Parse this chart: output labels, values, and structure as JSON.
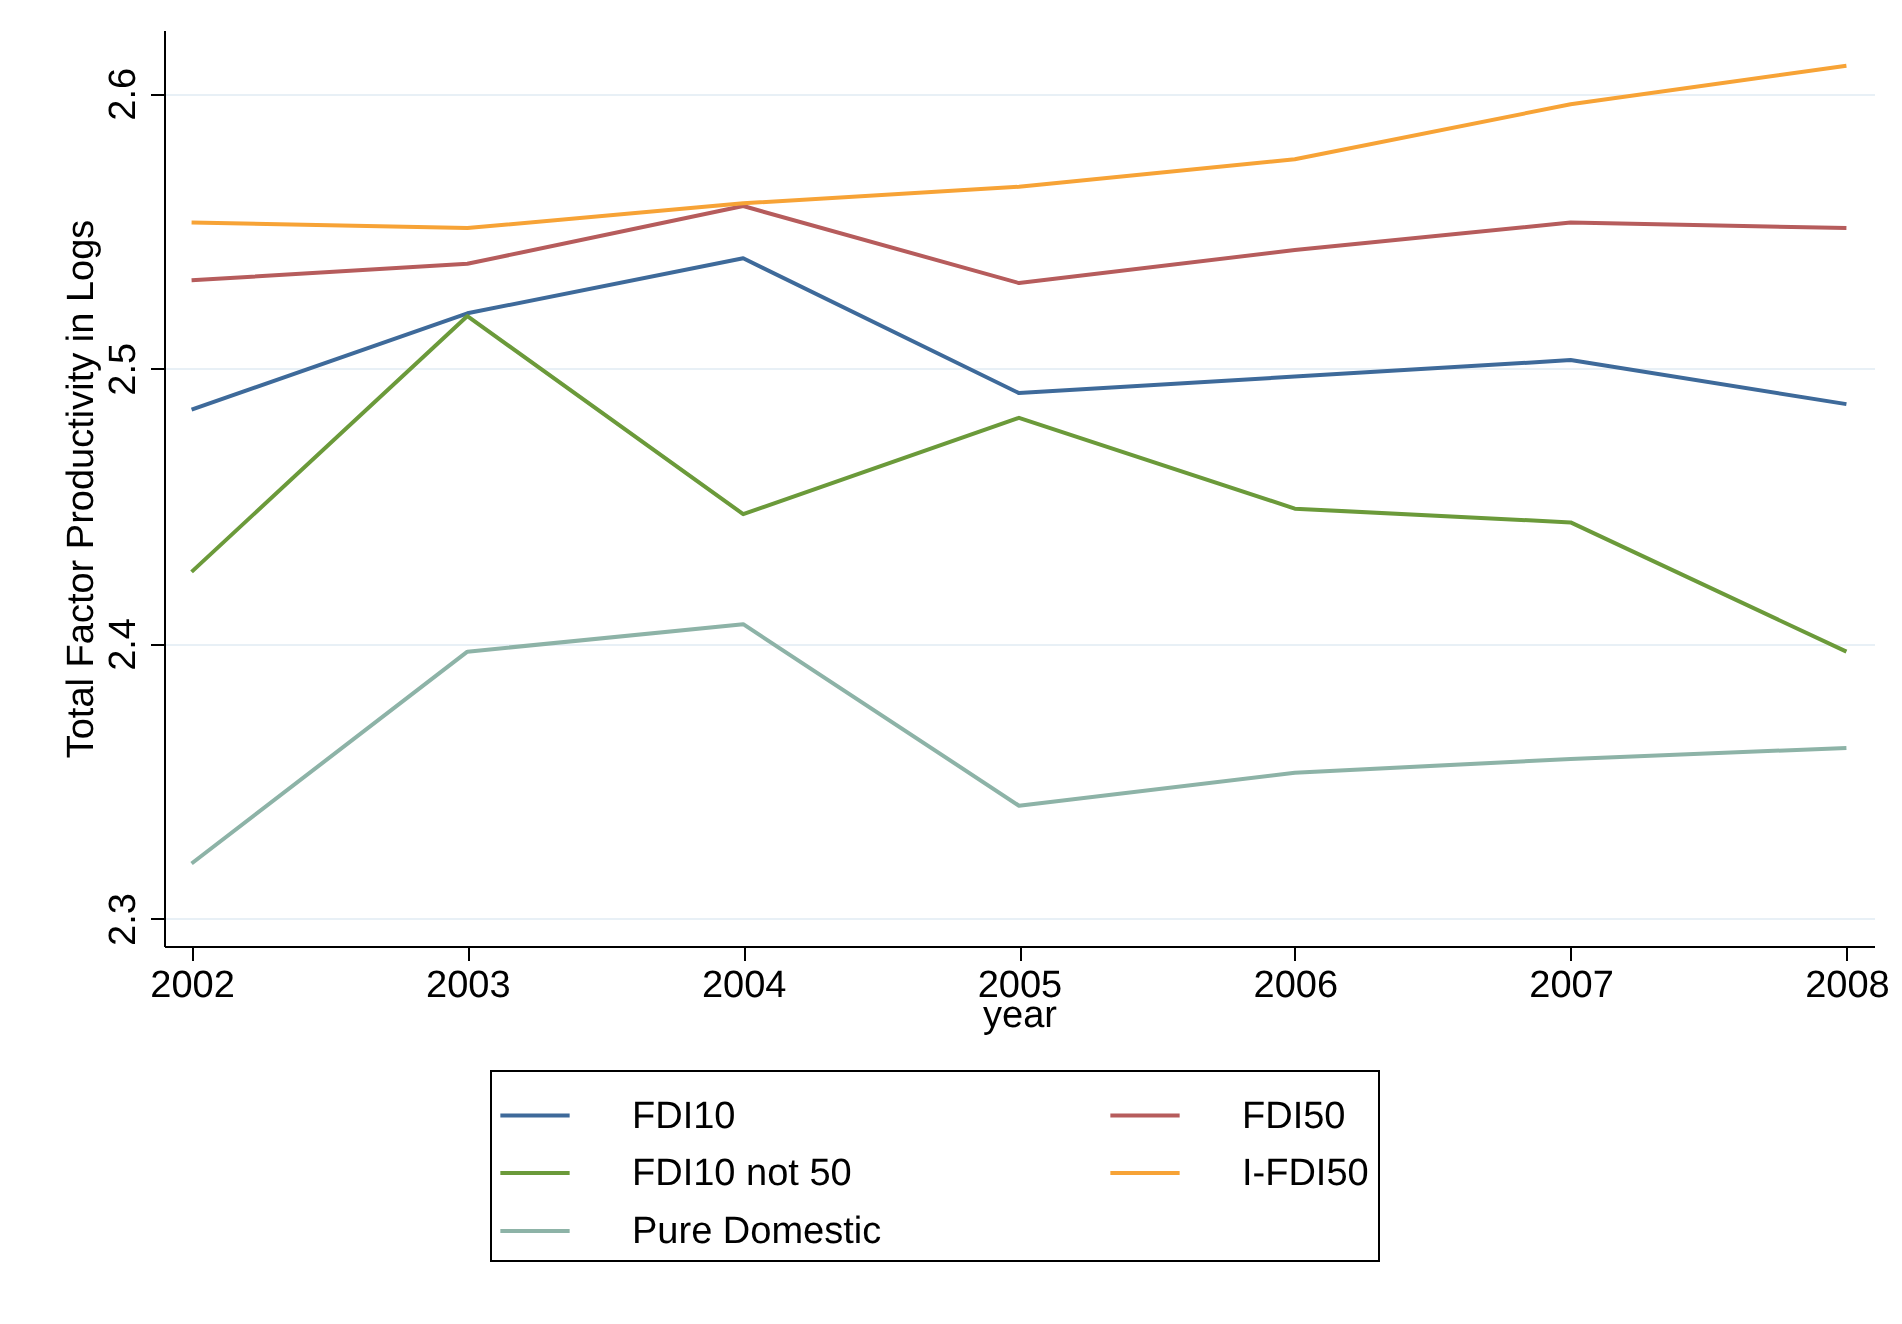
{
  "chart_data": {
    "type": "line",
    "xlabel": "year",
    "ylabel": "Total Factor Productivity in Logs",
    "x": [
      2002,
      2003,
      2004,
      2005,
      2006,
      2007,
      2008
    ],
    "series": [
      {
        "name": "FDI10",
        "color": "#3e6a9a",
        "values": [
          2.485,
          2.52,
          2.54,
          2.491,
          2.497,
          2.503,
          2.487
        ]
      },
      {
        "name": "FDI50",
        "color": "#b65c5c",
        "values": [
          2.532,
          2.538,
          2.559,
          2.531,
          2.543,
          2.553,
          2.551
        ]
      },
      {
        "name": "FDI10 not 50",
        "color": "#6b9a3a",
        "values": [
          2.426,
          2.519,
          2.447,
          2.482,
          2.449,
          2.444,
          2.397
        ]
      },
      {
        "name": "I-FDI50",
        "color": "#f7a336",
        "values": [
          2.553,
          2.551,
          2.56,
          2.566,
          2.576,
          2.596,
          2.61
        ]
      },
      {
        "name": "Pure Domestic",
        "color": "#8db3a7",
        "values": [
          2.32,
          2.397,
          2.407,
          2.341,
          2.353,
          2.358,
          2.362
        ]
      }
    ],
    "xlim": [
      2001.9,
      2008.1
    ],
    "xticks": [
      2002,
      2003,
      2004,
      2005,
      2006,
      2007,
      2008
    ],
    "ylim": [
      2.29,
      2.623
    ],
    "yticks": [
      2.3,
      2.4,
      2.5,
      2.6
    ],
    "grid": "y",
    "legend": "bottom",
    "line_style": "solid",
    "marker": "none"
  }
}
